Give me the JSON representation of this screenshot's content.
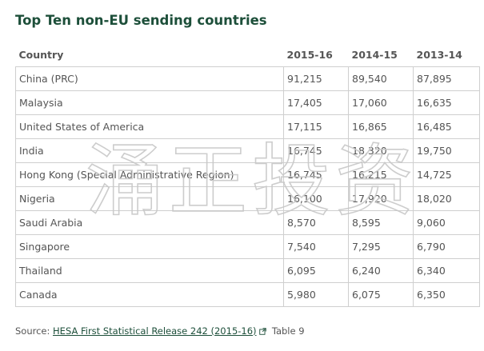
{
  "title": "Top Ten non-EU sending countries",
  "table": {
    "headers": [
      "Country",
      "2015-16",
      "2014-15",
      "2013-14"
    ],
    "rows": [
      [
        "China (PRC)",
        "91,215",
        "89,540",
        "87,895"
      ],
      [
        "Malaysia",
        "17,405",
        "17,060",
        "16,635"
      ],
      [
        "United States of America",
        "17,115",
        "16,865",
        "16,485"
      ],
      [
        "India",
        "16,745",
        "18,320",
        "19,750"
      ],
      [
        "Hong Kong (Special Administrative Region)",
        "16,745",
        "16,215",
        "14,725"
      ],
      [
        "Nigeria",
        "16,100",
        "17,920",
        "18,020"
      ],
      [
        "Saudi Arabia",
        "8,570",
        "8,595",
        "9,060"
      ],
      [
        "Singapore",
        "7,540",
        "7,295",
        "6,790"
      ],
      [
        "Thailand",
        "6,095",
        "6,240",
        "6,340"
      ],
      [
        "Canada",
        "5,980",
        "6,075",
        "6,350"
      ]
    ]
  },
  "source": {
    "prefix": "Source:",
    "link_text": "HESA First Statistical Release 242 (2015-16)",
    "suffix": "Table 9",
    "icon": "external-link-icon"
  },
  "watermark": {
    "text": "涌正投资"
  }
}
